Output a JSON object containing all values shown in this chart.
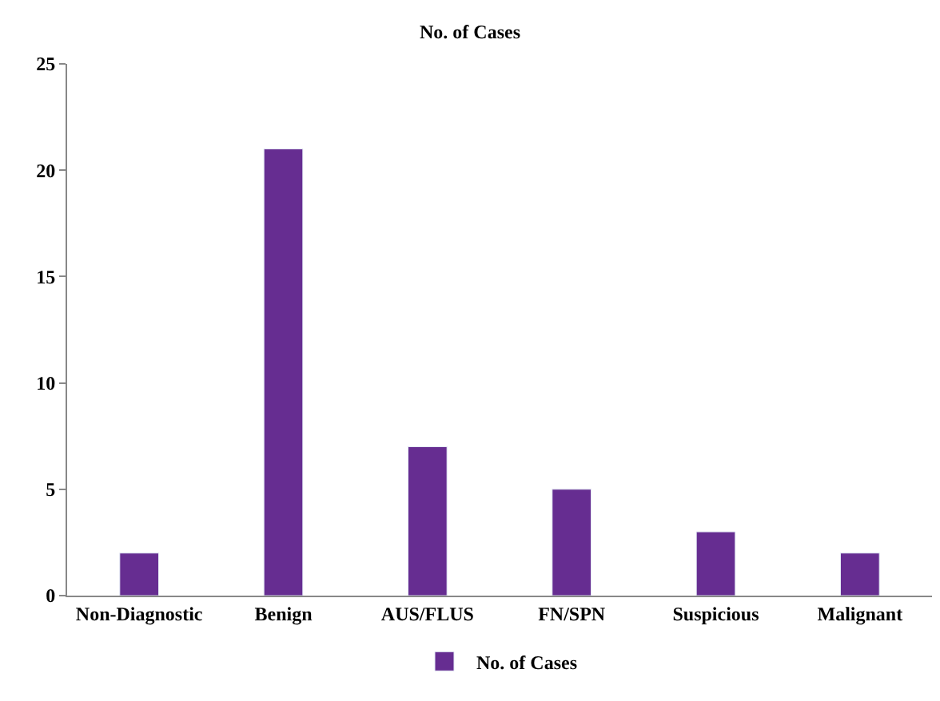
{
  "chart_data": {
    "type": "bar",
    "title": "No. of Cases",
    "categories": [
      "Non-Diagnostic",
      "Benign",
      "AUS/FLUS",
      "FN/SPN",
      "Suspicious",
      "Malignant"
    ],
    "series": [
      {
        "name": "No. of Cases",
        "color": "#662d91",
        "values": [
          2,
          21,
          7,
          5,
          3,
          2
        ]
      }
    ],
    "ylim": [
      0,
      25
    ],
    "yticks": [
      0,
      5,
      10,
      15,
      20,
      25
    ],
    "legend": "bottom"
  }
}
